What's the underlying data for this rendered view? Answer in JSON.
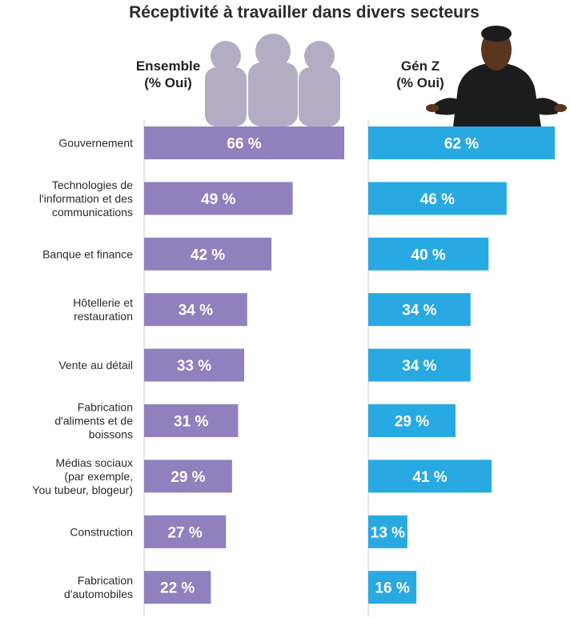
{
  "chart_data": {
    "type": "bar",
    "title": "Réceptivité à travailler dans divers secteurs",
    "categories": [
      [
        "Gouvernement"
      ],
      [
        "Technologies de",
        "l'information et des",
        "communications"
      ],
      [
        "Banque et finance"
      ],
      [
        "Hôtellerie et",
        "restauration"
      ],
      [
        "Vente au détail"
      ],
      [
        "Fabrication",
        "d'aliments et de",
        "boissons"
      ],
      [
        "Médias sociaux",
        "(par exemple,",
        "You tubeur, blogeur)"
      ],
      [
        "Construction"
      ],
      [
        "Fabrication",
        "d'automobiles"
      ]
    ],
    "series": [
      {
        "name": "Ensemble (% Oui)",
        "header": [
          "Ensemble",
          "(% Oui)"
        ],
        "color": "#9080be",
        "values": [
          66,
          49,
          42,
          34,
          33,
          31,
          29,
          27,
          22
        ]
      },
      {
        "name": "Gén Z (% Oui)",
        "header": [
          "Gén Z",
          "(% Oui)"
        ],
        "color": "#29a9e1",
        "values": [
          62,
          46,
          40,
          34,
          34,
          29,
          41,
          13,
          16
        ]
      }
    ],
    "value_suffix": " %",
    "xlim": [
      0,
      66
    ]
  },
  "decor": {
    "people_color": "#b3adc3",
    "person_color": "#1c1c1c",
    "skin_color": "#5a3620"
  }
}
